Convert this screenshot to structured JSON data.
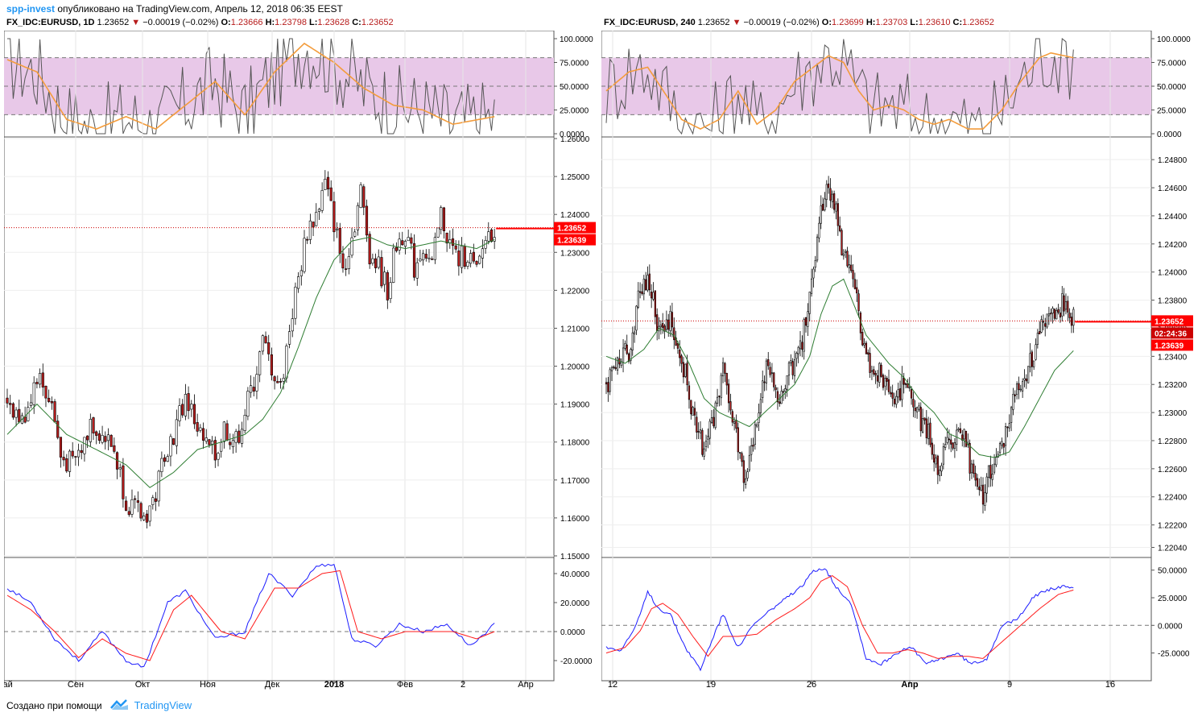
{
  "header": {
    "user": "spp-invest",
    "published_text": "опубликовано на TradingView.com, Апрель 12, 2018 06:35 EEST"
  },
  "footer": {
    "created_with": "Создано при помощи",
    "brand": "TradingView"
  },
  "colors": {
    "up_candle": "#ffffff",
    "down_candle": "#b71c1c",
    "ma_line": "#2e7d32",
    "stoch_k": "#555555",
    "stoch_d": "#f39c3c",
    "macd": "#1a1aff",
    "signal": "#ff1a1a",
    "band_fill": "#e8c8e8",
    "price_line": "#cc0000"
  },
  "panels": [
    {
      "symbol": "FX_IDC:EURUSD, 1D",
      "last": "1.23652",
      "change": "−0.00019 (−0.02%)",
      "o_label": "O:",
      "o": "1.23666",
      "h_label": "H:",
      "h": "1.23798",
      "l_label": "L:",
      "l": "1.23628",
      "c_label": "C:",
      "c": "1.23652",
      "price_tag": "1.23652",
      "ma_tag": "1.23639",
      "timer_tag": "",
      "x_labels": [
        "Сен",
        "Окт",
        "Ноя",
        "Дек",
        "2018",
        "Фев",
        "2",
        "Апр",
        "Май"
      ],
      "x_bold": [
        "2018"
      ]
    },
    {
      "symbol": "FX_IDC:EURUSD, 240",
      "last": "1.23652",
      "change": "−0.00019 (−0.02%)",
      "o_label": "O:",
      "o": "1.23699",
      "h_label": "H:",
      "h": "1.23703",
      "l_label": "L:",
      "l": "1.23610",
      "c_label": "C:",
      "c": "1.23652",
      "price_tag": "1.23652",
      "ma_tag": "1.23639",
      "timer_tag": "02:24:36",
      "x_labels": [
        "12",
        "19",
        "26",
        "Апр",
        "9",
        "16"
      ],
      "x_bold": [
        "Апр"
      ]
    }
  ],
  "chart_data": [
    {
      "type": "candlestick",
      "title": "FX_IDC:EURUSD, 1D",
      "price_axis": {
        "ylim": [
          1.15,
          1.26
        ],
        "ticks": [
          "1.26000",
          "1.25000",
          "1.24000",
          "1.23000",
          "1.22000",
          "1.21000",
          "1.20000",
          "1.19000",
          "1.18000",
          "1.17000",
          "1.16000",
          "1.15000"
        ]
      },
      "stochastic_axis": {
        "ylim": [
          0,
          100
        ],
        "ticks": [
          "100.0000",
          "75.0000",
          "50.0000",
          "25.0000",
          "0.0000"
        ],
        "band": [
          20,
          80
        ]
      },
      "macd_axis": {
        "ylim": [
          -30,
          50
        ],
        "ticks": [
          "40.0000",
          "20.0000",
          "0.0000",
          "-20.0000"
        ]
      },
      "last_price": 1.23652,
      "ma_last": 1.23639,
      "close_path": [
        [
          0,
          1.192
        ],
        [
          5,
          1.185
        ],
        [
          10,
          1.198
        ],
        [
          15,
          1.19
        ],
        [
          18,
          1.176
        ],
        [
          22,
          1.174
        ],
        [
          26,
          1.18
        ],
        [
          28,
          1.186
        ],
        [
          32,
          1.182
        ],
        [
          36,
          1.178
        ],
        [
          40,
          1.165
        ],
        [
          43,
          1.162
        ],
        [
          46,
          1.16
        ],
        [
          50,
          1.166
        ],
        [
          53,
          1.178
        ],
        [
          56,
          1.182
        ],
        [
          60,
          1.192
        ],
        [
          63,
          1.186
        ],
        [
          66,
          1.18
        ],
        [
          70,
          1.176
        ],
        [
          73,
          1.184
        ],
        [
          77,
          1.18
        ],
        [
          80,
          1.188
        ],
        [
          83,
          1.196
        ],
        [
          86,
          1.206
        ],
        [
          89,
          1.2
        ],
        [
          92,
          1.194
        ],
        [
          95,
          1.21
        ],
        [
          98,
          1.223
        ],
        [
          101,
          1.236
        ],
        [
          104,
          1.24
        ],
        [
          107,
          1.248
        ],
        [
          110,
          1.238
        ],
        [
          113,
          1.226
        ],
        [
          116,
          1.234
        ],
        [
          119,
          1.246
        ],
        [
          122,
          1.23
        ],
        [
          125,
          1.226
        ],
        [
          128,
          1.22
        ],
        [
          131,
          1.232
        ],
        [
          134,
          1.236
        ],
        [
          137,
          1.226
        ],
        [
          140,
          1.232
        ],
        [
          143,
          1.226
        ],
        [
          146,
          1.24
        ],
        [
          149,
          1.232
        ],
        [
          152,
          1.228
        ],
        [
          155,
          1.23
        ],
        [
          158,
          1.224
        ],
        [
          161,
          1.234
        ],
        [
          164,
          1.2365
        ]
      ],
      "ma_path": [
        [
          0,
          1.182
        ],
        [
          10,
          1.19
        ],
        [
          20,
          1.182
        ],
        [
          30,
          1.178
        ],
        [
          40,
          1.174
        ],
        [
          48,
          1.168
        ],
        [
          56,
          1.172
        ],
        [
          64,
          1.178
        ],
        [
          72,
          1.18
        ],
        [
          80,
          1.182
        ],
        [
          86,
          1.186
        ],
        [
          92,
          1.193
        ],
        [
          98,
          1.205
        ],
        [
          104,
          1.218
        ],
        [
          110,
          1.228
        ],
        [
          116,
          1.233
        ],
        [
          122,
          1.234
        ],
        [
          128,
          1.232
        ],
        [
          134,
          1.231
        ],
        [
          140,
          1.232
        ],
        [
          146,
          1.233
        ],
        [
          152,
          1.232
        ],
        [
          158,
          1.231
        ],
        [
          164,
          1.2334
        ]
      ],
      "stochastic_d_path": [
        [
          0,
          78
        ],
        [
          10,
          65
        ],
        [
          20,
          15
        ],
        [
          30,
          5
        ],
        [
          40,
          18
        ],
        [
          50,
          5
        ],
        [
          60,
          30
        ],
        [
          70,
          55
        ],
        [
          80,
          20
        ],
        [
          90,
          65
        ],
        [
          100,
          95
        ],
        [
          110,
          75
        ],
        [
          120,
          48
        ],
        [
          130,
          30
        ],
        [
          140,
          25
        ],
        [
          150,
          10
        ],
        [
          164,
          18
        ]
      ],
      "macd_path": [
        [
          0,
          30
        ],
        [
          8,
          20
        ],
        [
          16,
          -5
        ],
        [
          24,
          -20
        ],
        [
          32,
          0
        ],
        [
          40,
          -20
        ],
        [
          46,
          -25
        ],
        [
          54,
          20
        ],
        [
          60,
          28
        ],
        [
          70,
          -5
        ],
        [
          80,
          0
        ],
        [
          88,
          40
        ],
        [
          96,
          25
        ],
        [
          104,
          45
        ],
        [
          110,
          47
        ],
        [
          116,
          -5
        ],
        [
          124,
          -10
        ],
        [
          132,
          5
        ],
        [
          140,
          0
        ],
        [
          148,
          5
        ],
        [
          156,
          -10
        ],
        [
          164,
          5
        ]
      ],
      "signal_path": [
        [
          0,
          25
        ],
        [
          8,
          15
        ],
        [
          16,
          0
        ],
        [
          24,
          -18
        ],
        [
          32,
          -5
        ],
        [
          40,
          -15
        ],
        [
          48,
          -20
        ],
        [
          56,
          15
        ],
        [
          62,
          25
        ],
        [
          72,
          0
        ],
        [
          80,
          -5
        ],
        [
          90,
          30
        ],
        [
          98,
          30
        ],
        [
          106,
          40
        ],
        [
          112,
          42
        ],
        [
          118,
          0
        ],
        [
          126,
          -5
        ],
        [
          134,
          0
        ],
        [
          142,
          0
        ],
        [
          150,
          0
        ],
        [
          158,
          -5
        ],
        [
          164,
          0
        ]
      ]
    },
    {
      "type": "candlestick",
      "title": "FX_IDC:EURUSD, 240",
      "price_axis": {
        "ylim": [
          1.2198,
          1.2495
        ],
        "ticks": [
          "1.24800",
          "1.24600",
          "1.24400",
          "1.24200",
          "1.24000",
          "1.23800",
          "1.23600",
          "1.23400",
          "1.23200",
          "1.23000",
          "1.22800",
          "1.22600",
          "1.22400",
          "1.22200",
          "1.22040"
        ]
      },
      "stochastic_axis": {
        "ylim": [
          0,
          100
        ],
        "ticks": [
          "100.0000",
          "75.0000",
          "50.0000",
          "25.0000",
          "0.0000"
        ],
        "band": [
          20,
          80
        ]
      },
      "macd_axis": {
        "ylim": [
          -45,
          60
        ],
        "ticks": [
          "50.0000",
          "25.0000",
          "0.0000",
          "-25.0000"
        ]
      },
      "last_price": 1.23652,
      "ma_last": 1.23639,
      "timer": "02:24:36",
      "close_path": [
        [
          0,
          1.232
        ],
        [
          6,
          1.234
        ],
        [
          12,
          1.2345
        ],
        [
          18,
          1.2385
        ],
        [
          22,
          1.2398
        ],
        [
          26,
          1.237
        ],
        [
          30,
          1.2355
        ],
        [
          34,
          1.2365
        ],
        [
          40,
          1.234
        ],
        [
          46,
          1.23
        ],
        [
          52,
          1.227
        ],
        [
          58,
          1.2305
        ],
        [
          62,
          1.233
        ],
        [
          68,
          1.229
        ],
        [
          74,
          1.225
        ],
        [
          80,
          1.23
        ],
        [
          86,
          1.234
        ],
        [
          92,
          1.231
        ],
        [
          98,
          1.233
        ],
        [
          104,
          1.235
        ],
        [
          110,
          1.24
        ],
        [
          115,
          1.245
        ],
        [
          118,
          1.246
        ],
        [
          122,
          1.244
        ],
        [
          126,
          1.241
        ],
        [
          130,
          1.2395
        ],
        [
          134,
          1.237
        ],
        [
          138,
          1.234
        ],
        [
          142,
          1.232
        ],
        [
          146,
          1.233
        ],
        [
          152,
          1.231
        ],
        [
          158,
          1.232
        ],
        [
          164,
          1.23
        ],
        [
          170,
          1.229
        ],
        [
          176,
          1.226
        ],
        [
          182,
          1.228
        ],
        [
          188,
          1.229
        ],
        [
          194,
          1.226
        ],
        [
          200,
          1.224
        ],
        [
          206,
          1.227
        ],
        [
          212,
          1.2285
        ],
        [
          218,
          1.232
        ],
        [
          224,
          1.233
        ],
        [
          230,
          1.2355
        ],
        [
          236,
          1.237
        ],
        [
          242,
          1.2378
        ],
        [
          248,
          1.2365
        ]
      ],
      "ma_path": [
        [
          0,
          1.234
        ],
        [
          10,
          1.2335
        ],
        [
          20,
          1.2345
        ],
        [
          28,
          1.236
        ],
        [
          36,
          1.2355
        ],
        [
          44,
          1.2335
        ],
        [
          52,
          1.231
        ],
        [
          60,
          1.23
        ],
        [
          68,
          1.2295
        ],
        [
          76,
          1.229
        ],
        [
          84,
          1.23
        ],
        [
          92,
          1.231
        ],
        [
          100,
          1.232
        ],
        [
          108,
          1.234
        ],
        [
          114,
          1.237
        ],
        [
          120,
          1.239
        ],
        [
          126,
          1.2395
        ],
        [
          132,
          1.2375
        ],
        [
          138,
          1.2355
        ],
        [
          144,
          1.2345
        ],
        [
          150,
          1.2335
        ],
        [
          158,
          1.2325
        ],
        [
          166,
          1.231
        ],
        [
          174,
          1.23
        ],
        [
          182,
          1.2285
        ],
        [
          190,
          1.228
        ],
        [
          198,
          1.227
        ],
        [
          206,
          1.2268
        ],
        [
          214,
          1.2272
        ],
        [
          222,
          1.229
        ],
        [
          230,
          1.231
        ],
        [
          238,
          1.233
        ],
        [
          248,
          1.2344
        ]
      ],
      "stochastic_d_path": [
        [
          0,
          45
        ],
        [
          12,
          65
        ],
        [
          22,
          70
        ],
        [
          32,
          40
        ],
        [
          40,
          15
        ],
        [
          50,
          5
        ],
        [
          60,
          15
        ],
        [
          70,
          45
        ],
        [
          80,
          10
        ],
        [
          90,
          25
        ],
        [
          100,
          55
        ],
        [
          110,
          70
        ],
        [
          118,
          82
        ],
        [
          126,
          75
        ],
        [
          134,
          45
        ],
        [
          142,
          25
        ],
        [
          150,
          30
        ],
        [
          158,
          25
        ],
        [
          166,
          15
        ],
        [
          174,
          10
        ],
        [
          182,
          15
        ],
        [
          192,
          5
        ],
        [
          200,
          5
        ],
        [
          210,
          25
        ],
        [
          220,
          55
        ],
        [
          230,
          80
        ],
        [
          236,
          85
        ],
        [
          248,
          80
        ]
      ],
      "macd_path": [
        [
          0,
          -20
        ],
        [
          8,
          -22
        ],
        [
          16,
          0
        ],
        [
          22,
          30
        ],
        [
          28,
          15
        ],
        [
          34,
          10
        ],
        [
          42,
          -20
        ],
        [
          50,
          -40
        ],
        [
          58,
          -5
        ],
        [
          62,
          10
        ],
        [
          70,
          -20
        ],
        [
          78,
          0
        ],
        [
          88,
          15
        ],
        [
          96,
          25
        ],
        [
          104,
          35
        ],
        [
          110,
          50
        ],
        [
          116,
          52
        ],
        [
          122,
          35
        ],
        [
          130,
          20
        ],
        [
          138,
          -30
        ],
        [
          146,
          -35
        ],
        [
          154,
          -25
        ],
        [
          162,
          -20
        ],
        [
          170,
          -35
        ],
        [
          178,
          -30
        ],
        [
          186,
          -25
        ],
        [
          194,
          -35
        ],
        [
          202,
          -30
        ],
        [
          210,
          0
        ],
        [
          218,
          5
        ],
        [
          226,
          25
        ],
        [
          234,
          32
        ],
        [
          242,
          35
        ],
        [
          248,
          33
        ]
      ],
      "signal_path": [
        [
          0,
          -25
        ],
        [
          10,
          -20
        ],
        [
          18,
          -5
        ],
        [
          24,
          15
        ],
        [
          30,
          20
        ],
        [
          38,
          10
        ],
        [
          46,
          -10
        ],
        [
          54,
          -28
        ],
        [
          62,
          -10
        ],
        [
          70,
          -10
        ],
        [
          80,
          -8
        ],
        [
          90,
          5
        ],
        [
          100,
          15
        ],
        [
          108,
          25
        ],
        [
          114,
          40
        ],
        [
          120,
          45
        ],
        [
          128,
          35
        ],
        [
          136,
          0
        ],
        [
          144,
          -25
        ],
        [
          152,
          -25
        ],
        [
          160,
          -22
        ],
        [
          168,
          -25
        ],
        [
          176,
          -30
        ],
        [
          184,
          -28
        ],
        [
          192,
          -28
        ],
        [
          200,
          -30
        ],
        [
          210,
          -15
        ],
        [
          220,
          0
        ],
        [
          230,
          15
        ],
        [
          240,
          28
        ],
        [
          248,
          32
        ]
      ]
    }
  ]
}
